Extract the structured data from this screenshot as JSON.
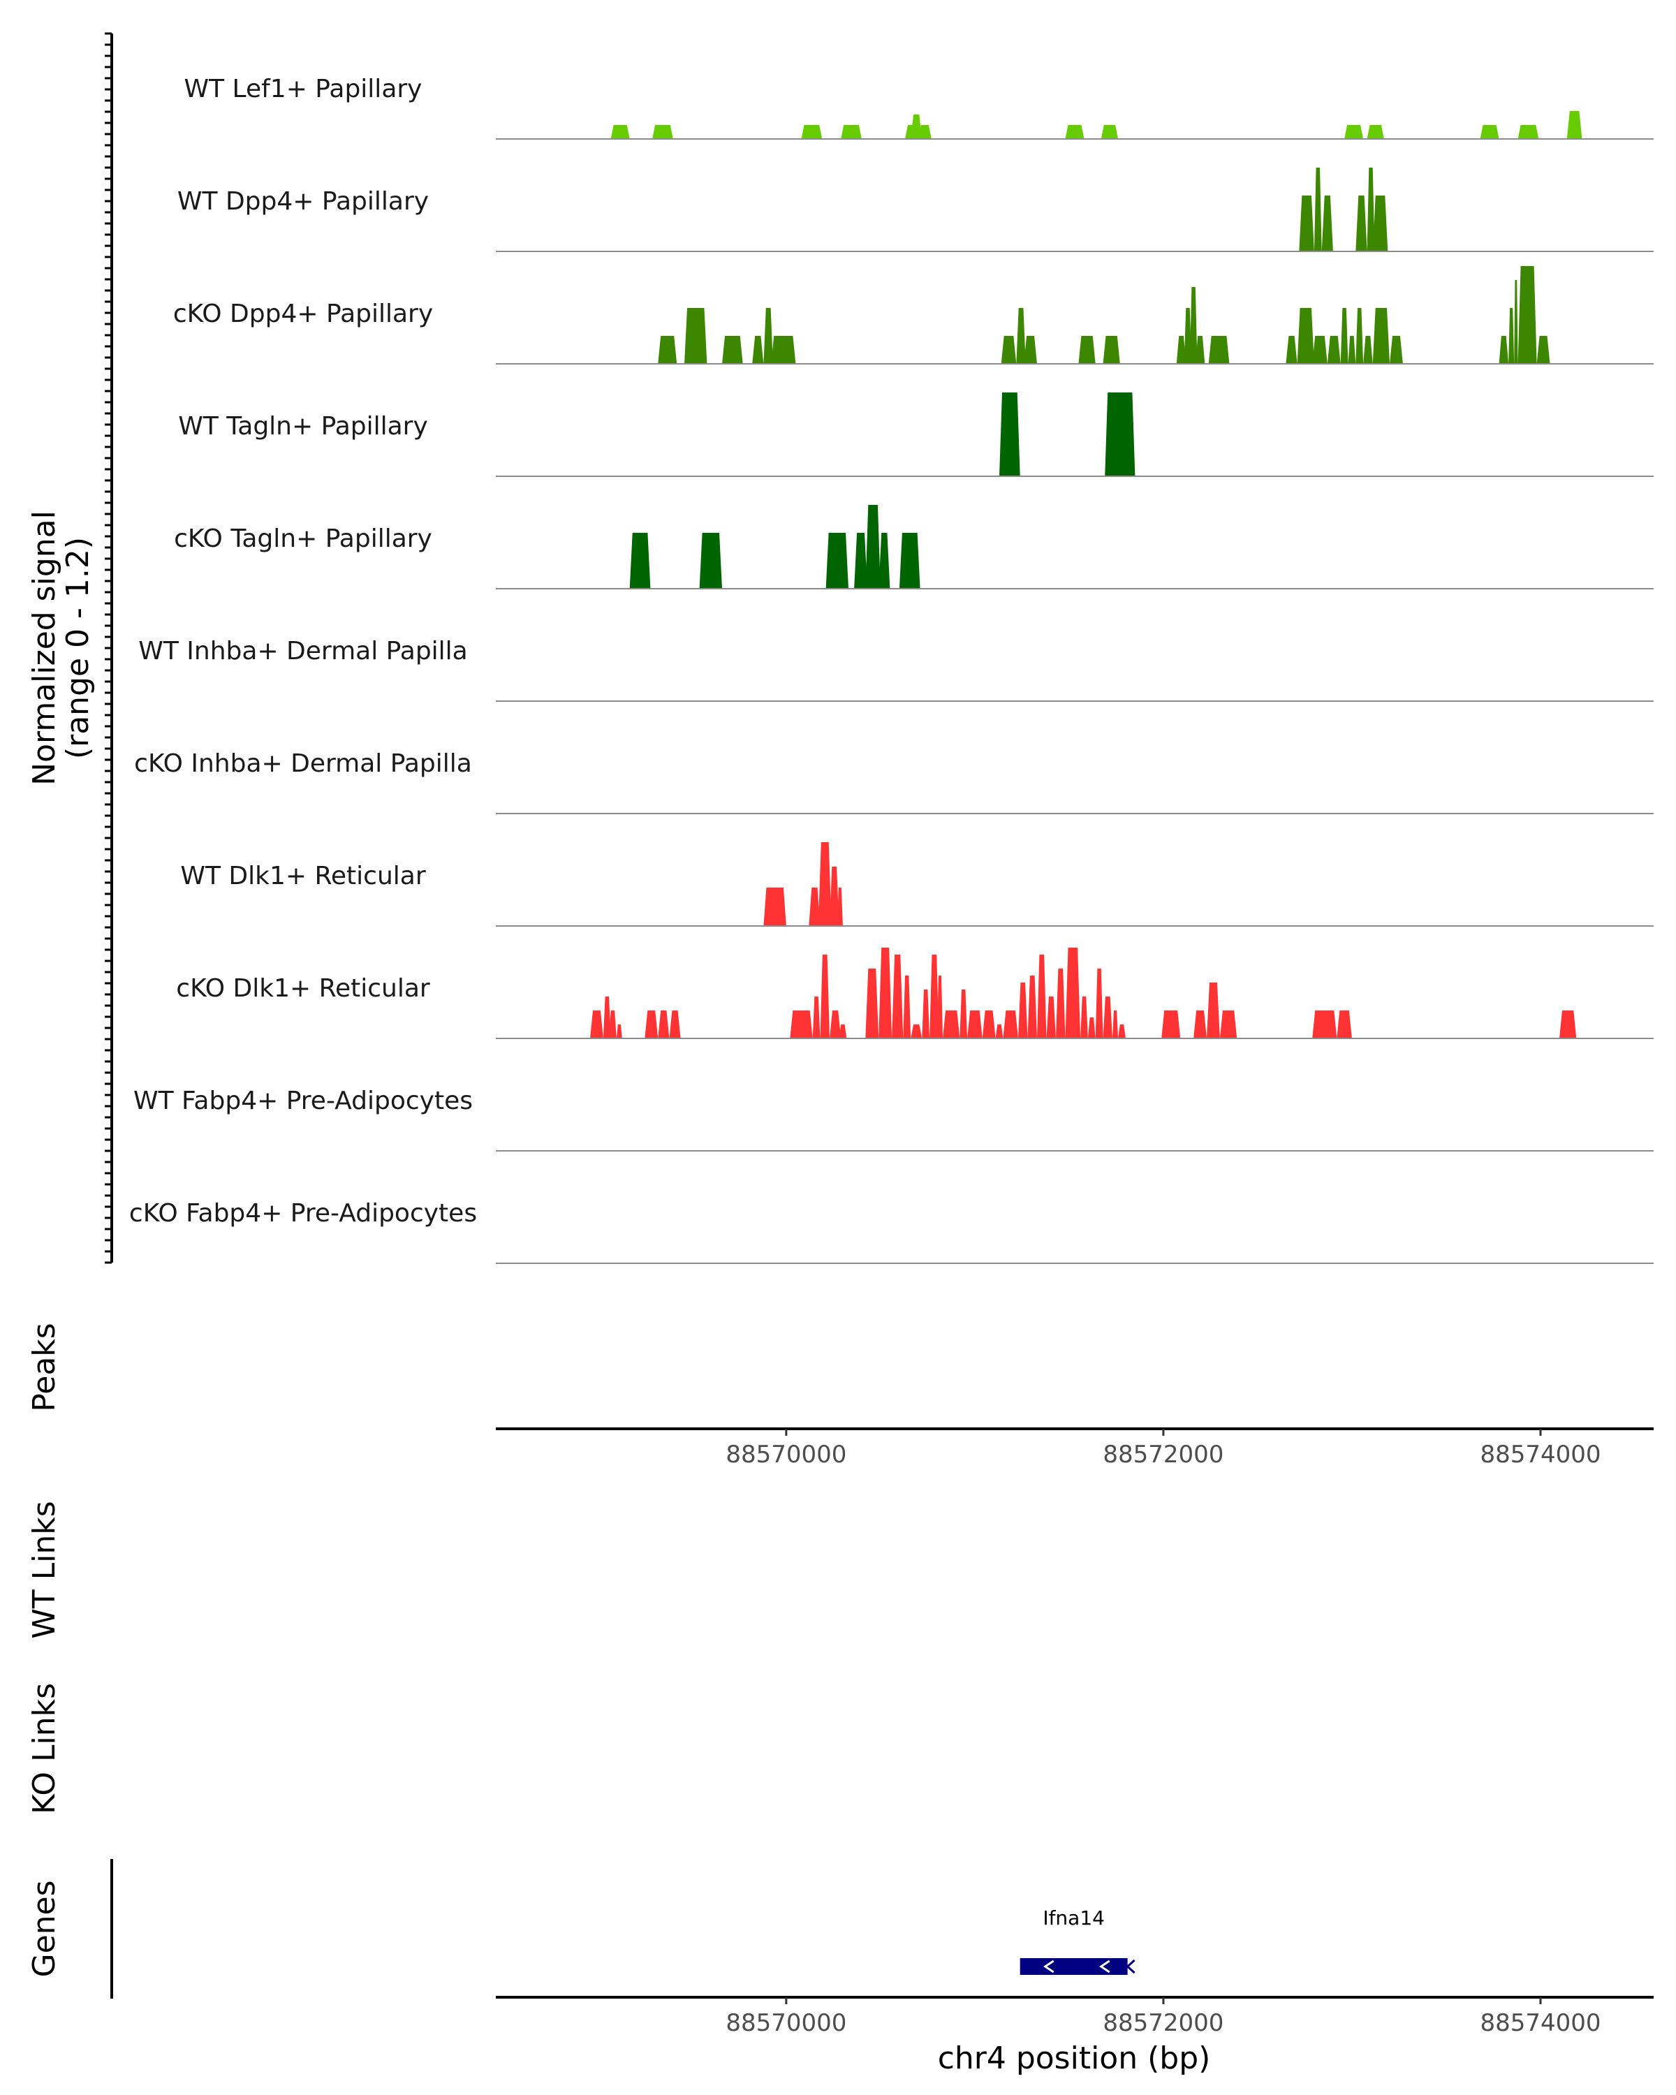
{
  "chart_data": {
    "type": "area",
    "title": "",
    "region": "chr4",
    "ylabel": "Normalized signal",
    "ylabel_range": "(range 0 - 1.2)",
    "ylim": [
      0,
      1.2
    ],
    "xlabel": "chr4 position (bp)",
    "xlim": [
      88568460,
      88574600
    ],
    "xticks": [
      88570000,
      88572000,
      88574000
    ],
    "xtick_labels": [
      "88570000",
      "88572000",
      "88574000"
    ],
    "panel_labels": {
      "peaks": "Peaks",
      "wt_links": "WT Links",
      "ko_links": "KO Links",
      "genes": "Genes"
    },
    "genes": [
      {
        "name": "Ifna14",
        "start": 88571240,
        "end": 88571810,
        "strand": "-",
        "color": "#000080"
      }
    ],
    "series": [
      {
        "name": "WT Lef1+ Papillary",
        "color": "#66cc00",
        "blocks": [
          [
            88569070,
            88569170,
            0.2
          ],
          [
            88569290,
            88569400,
            0.2
          ],
          [
            88570080,
            88570190,
            0.2
          ],
          [
            88570290,
            88570400,
            0.2
          ],
          [
            88570630,
            88570690,
            0.2
          ],
          [
            88570660,
            88570720,
            0.35
          ],
          [
            88570700,
            88570770,
            0.2
          ],
          [
            88571480,
            88571580,
            0.2
          ],
          [
            88571670,
            88571760,
            0.2
          ],
          [
            88572960,
            88573060,
            0.2
          ],
          [
            88573080,
            88573170,
            0.2
          ],
          [
            88573680,
            88573780,
            0.2
          ],
          [
            88573880,
            88573990,
            0.2
          ],
          [
            88574140,
            88574220,
            0.4
          ]
        ]
      },
      {
        "name": "WT Dpp4+ Papillary",
        "color": "#3d8700",
        "blocks": [
          [
            88572720,
            88572800,
            0.8
          ],
          [
            88572800,
            88572840,
            1.2
          ],
          [
            88572840,
            88572900,
            0.8
          ],
          [
            88573020,
            88573080,
            0.8
          ],
          [
            88573080,
            88573120,
            1.2
          ],
          [
            88573110,
            88573190,
            0.8
          ]
        ]
      },
      {
        "name": "cKO Dpp4+ Papillary",
        "color": "#3d8700",
        "blocks": [
          [
            88569320,
            88569420,
            0.4
          ],
          [
            88569460,
            88569580,
            0.8
          ],
          [
            88569660,
            88569770,
            0.4
          ],
          [
            88569820,
            88569880,
            0.4
          ],
          [
            88569880,
            88569930,
            0.8
          ],
          [
            88569920,
            88570050,
            0.4
          ],
          [
            88571140,
            88571220,
            0.4
          ],
          [
            88571220,
            88571270,
            0.8
          ],
          [
            88571260,
            88571330,
            0.4
          ],
          [
            88571550,
            88571640,
            0.4
          ],
          [
            88571680,
            88571770,
            0.4
          ],
          [
            88572070,
            88572120,
            0.4
          ],
          [
            88572110,
            88572150,
            0.8
          ],
          [
            88572140,
            88572180,
            1.1
          ],
          [
            88572170,
            88572220,
            0.4
          ],
          [
            88572240,
            88572350,
            0.4
          ],
          [
            88572650,
            88572710,
            0.4
          ],
          [
            88572710,
            88572800,
            0.8
          ],
          [
            88572790,
            88572870,
            0.4
          ],
          [
            88572870,
            88572940,
            0.4
          ],
          [
            88572940,
            88572980,
            0.8
          ],
          [
            88572980,
            88573020,
            0.4
          ],
          [
            88573020,
            88573060,
            0.8
          ],
          [
            88573060,
            88573110,
            0.4
          ],
          [
            88573110,
            88573200,
            0.8
          ],
          [
            88573200,
            88573270,
            0.4
          ],
          [
            88573780,
            88573830,
            0.4
          ],
          [
            88573830,
            88573860,
            0.8
          ],
          [
            88573860,
            88573880,
            1.2
          ],
          [
            88573880,
            88573980,
            1.4
          ],
          [
            88573980,
            88574050,
            0.4
          ]
        ]
      },
      {
        "name": "WT Tagln+ Papillary",
        "color": "#006400",
        "blocks": [
          [
            88571130,
            88571240,
            1.2
          ],
          [
            88571690,
            88571850,
            1.2
          ]
        ]
      },
      {
        "name": "cKO Tagln+ Papillary",
        "color": "#006400",
        "blocks": [
          [
            88569170,
            88569280,
            0.8
          ],
          [
            88569540,
            88569660,
            0.8
          ],
          [
            88570210,
            88570330,
            0.8
          ],
          [
            88570360,
            88570430,
            0.8
          ],
          [
            88570420,
            88570500,
            1.2
          ],
          [
            88570490,
            88570550,
            0.8
          ],
          [
            88570600,
            88570710,
            0.8
          ]
        ]
      },
      {
        "name": "WT Inhba+ Dermal Papilla",
        "color": "#ff0000",
        "blocks": []
      },
      {
        "name": "cKO Inhba+ Dermal Papilla",
        "color": "#ff0000",
        "blocks": []
      },
      {
        "name": "WT Dlk1+ Reticular",
        "color": "#ff3333",
        "blocks": [
          [
            88569880,
            88570000,
            0.55
          ],
          [
            88570120,
            88570180,
            0.55
          ],
          [
            88570170,
            88570240,
            1.2
          ],
          [
            88570230,
            88570280,
            0.85
          ],
          [
            88570270,
            88570300,
            0.55
          ]
        ]
      },
      {
        "name": "cKO Dlk1+ Reticular",
        "color": "#ff3333",
        "blocks": [
          [
            88568960,
            88569030,
            0.4
          ],
          [
            88569030,
            88569070,
            0.6
          ],
          [
            88569060,
            88569100,
            0.4
          ],
          [
            88569100,
            88569130,
            0.2
          ],
          [
            88569250,
            88569320,
            0.4
          ],
          [
            88569320,
            88569380,
            0.4
          ],
          [
            88569380,
            88569440,
            0.4
          ],
          [
            88570020,
            88570140,
            0.4
          ],
          [
            88570140,
            88570180,
            0.6
          ],
          [
            88570180,
            88570230,
            1.2
          ],
          [
            88570230,
            88570290,
            0.4
          ],
          [
            88570280,
            88570320,
            0.2
          ],
          [
            88570420,
            88570490,
            1.0
          ],
          [
            88570490,
            88570560,
            1.3
          ],
          [
            88570560,
            88570620,
            1.2
          ],
          [
            88570620,
            88570660,
            0.9
          ],
          [
            88570660,
            88570720,
            0.2
          ],
          [
            88570720,
            88570760,
            0.7
          ],
          [
            88570760,
            88570810,
            1.2
          ],
          [
            88570800,
            88570830,
            0.9
          ],
          [
            88570830,
            88570920,
            0.4
          ],
          [
            88570920,
            88570960,
            0.7
          ],
          [
            88570960,
            88571040,
            0.4
          ],
          [
            88571040,
            88571110,
            0.4
          ],
          [
            88571110,
            88571150,
            0.2
          ],
          [
            88571150,
            88571230,
            0.4
          ],
          [
            88571230,
            88571280,
            0.8
          ],
          [
            88571280,
            88571330,
            0.9
          ],
          [
            88571330,
            88571380,
            1.2
          ],
          [
            88571380,
            88571430,
            0.6
          ],
          [
            88571430,
            88571480,
            1.0
          ],
          [
            88571480,
            88571560,
            1.3
          ],
          [
            88571560,
            88571600,
            0.6
          ],
          [
            88571600,
            88571640,
            0.3
          ],
          [
            88571640,
            88571680,
            1.0
          ],
          [
            88571680,
            88571730,
            0.6
          ],
          [
            88571730,
            88571760,
            0.4
          ],
          [
            88571760,
            88571800,
            0.2
          ],
          [
            88571990,
            88572090,
            0.4
          ],
          [
            88572160,
            88572230,
            0.4
          ],
          [
            88572230,
            88572300,
            0.8
          ],
          [
            88572300,
            88572390,
            0.4
          ],
          [
            88572790,
            88572920,
            0.4
          ],
          [
            88572920,
            88573000,
            0.4
          ],
          [
            88574100,
            88574190,
            0.4
          ]
        ]
      },
      {
        "name": "WT Fabp4+ Pre-Adipocytes",
        "color": "#ff0000",
        "blocks": []
      },
      {
        "name": "cKO Fabp4+ Pre-Adipocytes",
        "color": "#ff0000",
        "blocks": []
      }
    ]
  }
}
